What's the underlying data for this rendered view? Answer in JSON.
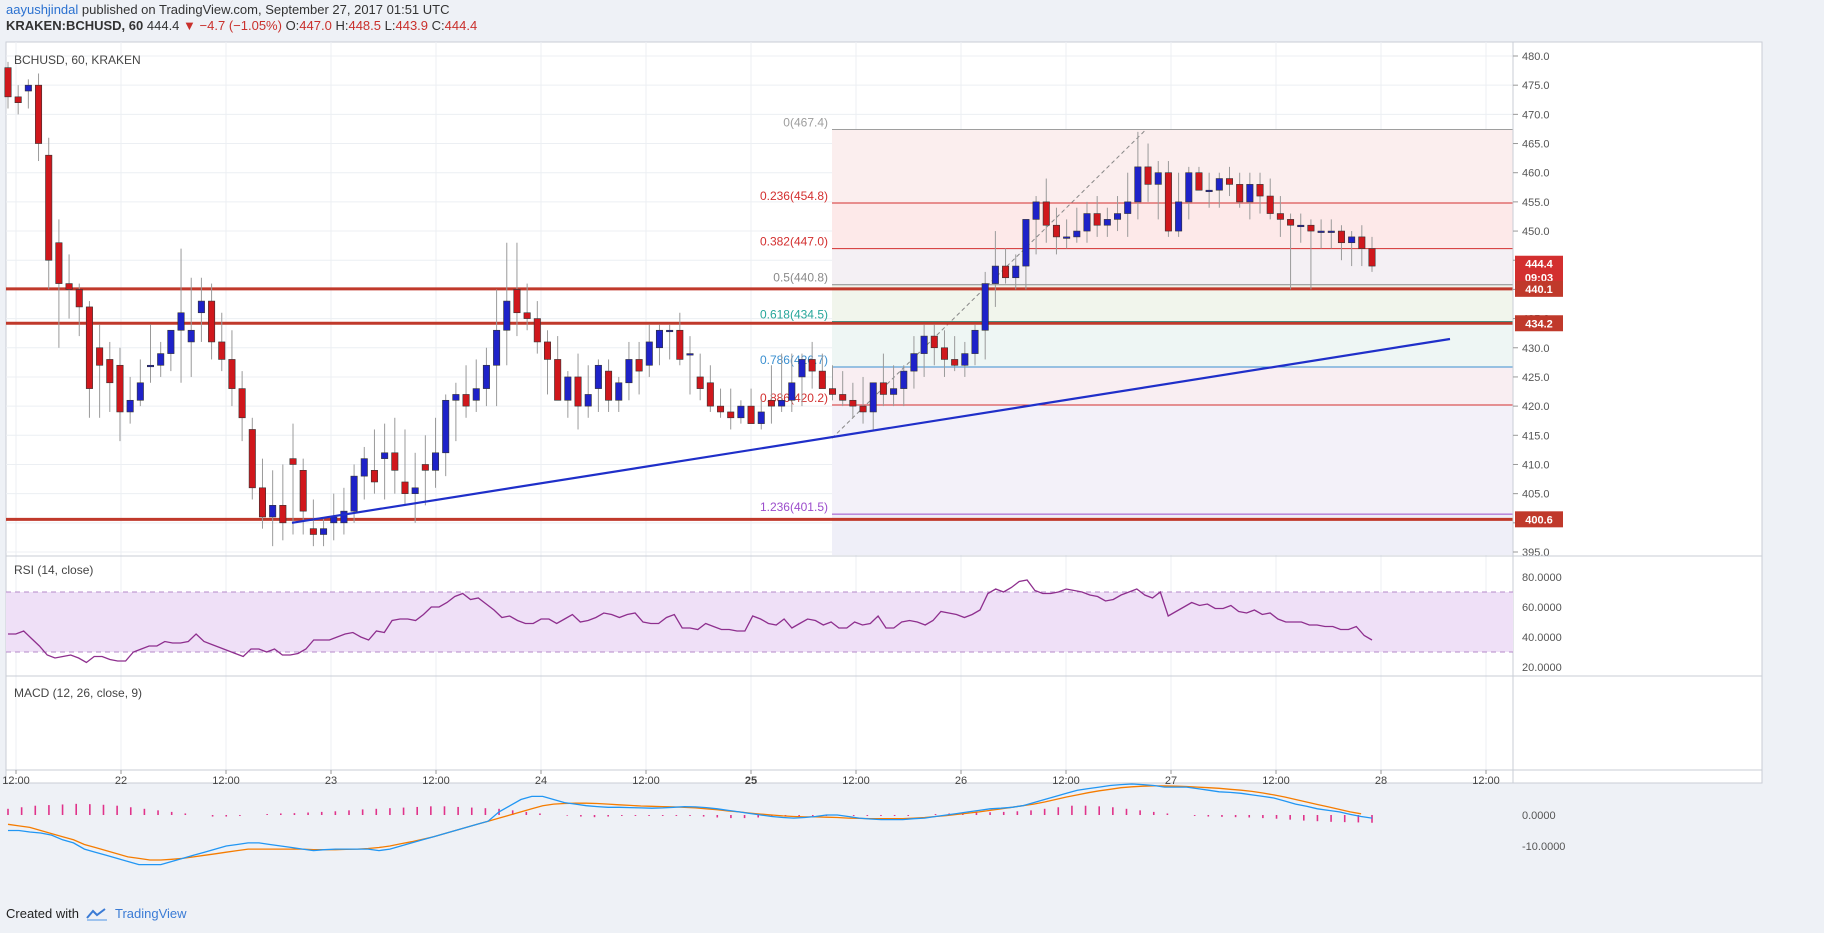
{
  "header": {
    "author": "aayushjindal",
    "published": " published on TradingView.com, September 27, 2017 01:51 UTC",
    "symbol": "KRAKEN:BCHUSD, 60",
    "last": "444.4",
    "change": "−4.7 (−1.05%)",
    "o_label": "O:",
    "o": "447.0",
    "h_label": "H:",
    "h": "448.5",
    "l_label": "L:",
    "l": "443.9",
    "c_label": "C:",
    "c": "444.4"
  },
  "pane_title": "BCHUSD, 60, KRAKEN",
  "footer": {
    "created_with": "Created with",
    "brand": "TradingView"
  },
  "chart_data": {
    "type": "candlestick",
    "symbol": "BCHUSD",
    "interval": "60",
    "exchange": "KRAKEN",
    "price_axis": {
      "min": 395,
      "max": 480,
      "ticks": [
        "480.0",
        "475.0",
        "470.0",
        "465.0",
        "460.0",
        "455.0",
        "450.0",
        "445.0",
        "440.0",
        "435.0",
        "430.0",
        "425.0",
        "420.0",
        "415.0",
        "410.0",
        "405.0",
        "400.0",
        "395.0"
      ]
    },
    "time_axis": {
      "ticks": [
        "12:00",
        "22",
        "12:00",
        "23",
        "12:00",
        "24",
        "12:00",
        "25",
        "12:00",
        "26",
        "12:00",
        "27",
        "12:00",
        "28",
        "12:00"
      ],
      "bold": [
        "25"
      ]
    },
    "ohlc_bars_in_drawn_order": [
      [
        478,
        479,
        471,
        473
      ],
      [
        473,
        475,
        470,
        472
      ],
      [
        474,
        476,
        471,
        475
      ],
      [
        475,
        477,
        462,
        465
      ],
      [
        463,
        466,
        440,
        445
      ],
      [
        448,
        452,
        430,
        441
      ],
      [
        441,
        446,
        435,
        440
      ],
      [
        440,
        441,
        432,
        437
      ],
      [
        437,
        438,
        418,
        423
      ],
      [
        430,
        434,
        418,
        427
      ],
      [
        428,
        431,
        419,
        424
      ],
      [
        427,
        430,
        414,
        419
      ],
      [
        419,
        425,
        417,
        421
      ],
      [
        421,
        428,
        420,
        424
      ],
      [
        427,
        434,
        424,
        427
      ],
      [
        427,
        431,
        425,
        429
      ],
      [
        429,
        433,
        426,
        433
      ],
      [
        433,
        447,
        424,
        436
      ],
      [
        431,
        442,
        425,
        433
      ],
      [
        436,
        442,
        431,
        438
      ],
      [
        438,
        441,
        428,
        431
      ],
      [
        431,
        436,
        426,
        428
      ],
      [
        428,
        433,
        420,
        423
      ],
      [
        423,
        426,
        414,
        418
      ],
      [
        416,
        418,
        404,
        406
      ],
      [
        406,
        411,
        399,
        401
      ],
      [
        401,
        409,
        396,
        403
      ],
      [
        403,
        410,
        397,
        400
      ],
      [
        411,
        417,
        398,
        410
      ],
      [
        409,
        411,
        398,
        402
      ],
      [
        399,
        404,
        396,
        398
      ],
      [
        398,
        401,
        396,
        399
      ],
      [
        400,
        405,
        397,
        401
      ],
      [
        400,
        406,
        398,
        402
      ],
      [
        402,
        410,
        400,
        408
      ],
      [
        408,
        413,
        404,
        411
      ],
      [
        409,
        416,
        405,
        407
      ],
      [
        411,
        417,
        404,
        412
      ],
      [
        412,
        418,
        405,
        409
      ],
      [
        407,
        416,
        403,
        405
      ],
      [
        405,
        412,
        400,
        406
      ],
      [
        410,
        415,
        403,
        409
      ],
      [
        409,
        418,
        406,
        412
      ],
      [
        412,
        422,
        408,
        421
      ],
      [
        421,
        424,
        414,
        422
      ],
      [
        422,
        427,
        418,
        420
      ],
      [
        421,
        428,
        419,
        423
      ],
      [
        423,
        430,
        420,
        427
      ],
      [
        427,
        440,
        420,
        433
      ],
      [
        433,
        448,
        427,
        438
      ],
      [
        440,
        448,
        432,
        436
      ],
      [
        436,
        441,
        433,
        435
      ],
      [
        435,
        438,
        429,
        431
      ],
      [
        431,
        433,
        422,
        428
      ],
      [
        428,
        432,
        421,
        421
      ],
      [
        421,
        426,
        418,
        425
      ],
      [
        425,
        429,
        416,
        420
      ],
      [
        420,
        427,
        418,
        422
      ],
      [
        423,
        428,
        419,
        427
      ],
      [
        426,
        428,
        419,
        421
      ],
      [
        421,
        425,
        419,
        424
      ],
      [
        424,
        431,
        421,
        428
      ],
      [
        428,
        431,
        422,
        426
      ],
      [
        427,
        434,
        425,
        431
      ],
      [
        430,
        434,
        427,
        433
      ],
      [
        433,
        434,
        428,
        433
      ],
      [
        433,
        436,
        427,
        428
      ],
      [
        429,
        432,
        422,
        429
      ],
      [
        425,
        429,
        421,
        423
      ],
      [
        424,
        427,
        419,
        420
      ],
      [
        420,
        423,
        418,
        419
      ],
      [
        419,
        423,
        416,
        418
      ],
      [
        418,
        421,
        417,
        420
      ],
      [
        420,
        423,
        418,
        417
      ],
      [
        417,
        421,
        416,
        419
      ],
      [
        421,
        427,
        417,
        420
      ],
      [
        420,
        429,
        419,
        421
      ],
      [
        421,
        429,
        419,
        424
      ],
      [
        425,
        429,
        420,
        428
      ],
      [
        428,
        431,
        423,
        426
      ],
      [
        426,
        429,
        424,
        423
      ],
      [
        423,
        427,
        421,
        422
      ],
      [
        422,
        426,
        420,
        421
      ],
      [
        421,
        424,
        418,
        420
      ],
      [
        420,
        425,
        417,
        419
      ],
      [
        419,
        423,
        416,
        424
      ],
      [
        424,
        429,
        420,
        422
      ],
      [
        422,
        427,
        420,
        423
      ],
      [
        423,
        427,
        420,
        426
      ],
      [
        426,
        432,
        423,
        429
      ],
      [
        429,
        434,
        425,
        432
      ],
      [
        432,
        434,
        427,
        430
      ],
      [
        430,
        433,
        425,
        428
      ],
      [
        428,
        432,
        426,
        427
      ],
      [
        427,
        431,
        425,
        429
      ],
      [
        429,
        434,
        427,
        433
      ],
      [
        433,
        443,
        428,
        441
      ],
      [
        441,
        450,
        437,
        444
      ],
      [
        444,
        447,
        441,
        442
      ],
      [
        442,
        446,
        440,
        444
      ],
      [
        444,
        451,
        440,
        452
      ],
      [
        452,
        456,
        446,
        455
      ],
      [
        455,
        459,
        448,
        451
      ],
      [
        451,
        454,
        446,
        449
      ],
      [
        449,
        452,
        447,
        449
      ],
      [
        449,
        454,
        448,
        450
      ],
      [
        450,
        455,
        448,
        453
      ],
      [
        453,
        456,
        449,
        451
      ],
      [
        451,
        454,
        449,
        452
      ],
      [
        452,
        456,
        450,
        453
      ],
      [
        453,
        460,
        449,
        455
      ],
      [
        455,
        467,
        452,
        461
      ],
      [
        461,
        465,
        455,
        458
      ],
      [
        458,
        462,
        452,
        460
      ],
      [
        460,
        462,
        449,
        450
      ],
      [
        450,
        460,
        449,
        455
      ],
      [
        455,
        461,
        452,
        460
      ],
      [
        460,
        461,
        457,
        457
      ],
      [
        457,
        460,
        454,
        457
      ],
      [
        457,
        460,
        454,
        459
      ],
      [
        459,
        461,
        456,
        458
      ],
      [
        458,
        460,
        454,
        455
      ],
      [
        455,
        460,
        452,
        458
      ],
      [
        458,
        460,
        453,
        456
      ],
      [
        456,
        459,
        452,
        453
      ],
      [
        453,
        456,
        449,
        452
      ],
      [
        452,
        453,
        440,
        451
      ],
      [
        451,
        453,
        448,
        451
      ],
      [
        451,
        452,
        440,
        450
      ],
      [
        450,
        452,
        447,
        450
      ],
      [
        450,
        452,
        447,
        450
      ],
      [
        450,
        451,
        445,
        448
      ],
      [
        448,
        450,
        444,
        449
      ],
      [
        449,
        451,
        444,
        447
      ],
      [
        447,
        449,
        443,
        444
      ]
    ],
    "fibonacci_levels": [
      {
        "ratio": "0",
        "price": "467.4",
        "label": "0(467.4)"
      },
      {
        "ratio": "0.236",
        "price": "454.8",
        "label": "0.236(454.8)"
      },
      {
        "ratio": "0.382",
        "price": "447.0",
        "label": "0.382(447.0)"
      },
      {
        "ratio": "0.5",
        "price": "440.8",
        "label": "0.5(440.8)"
      },
      {
        "ratio": "0.618",
        "price": "434.5",
        "label": "0.618(434.5)"
      },
      {
        "ratio": "0.786",
        "price": "426.7",
        "label": "0.786(426.7)"
      },
      {
        "ratio": "0.886",
        "price": "420.2",
        "label": "0.886(420.2)"
      },
      {
        "ratio": "1.236",
        "price": "401.5",
        "label": "1.236(401.5)"
      }
    ],
    "horizontal_lines": [
      {
        "price": 440.1,
        "label": "440.1"
      },
      {
        "price": 434.2,
        "label": "434.2"
      },
      {
        "price": 400.6,
        "label": "400.6"
      }
    ],
    "last_price_tag": "444.4",
    "countdown_tag": "09:03",
    "trend_line": {
      "from": [
        1.0,
        400.0
      ],
      "to": [
        6.0,
        431.5
      ]
    },
    "rsi": {
      "title": "RSI (14, close)",
      "axis_ticks": [
        "80.0000",
        "60.0000",
        "40.0000",
        "20.0000"
      ],
      "upper": 70,
      "lower": 30,
      "values": [
        42,
        42,
        44,
        39,
        34,
        28,
        26,
        27,
        28,
        26,
        23,
        27,
        27,
        25,
        24,
        24,
        30,
        32,
        34,
        34,
        37,
        36,
        36,
        37,
        42,
        37,
        35,
        33,
        31,
        29,
        27,
        32,
        32,
        30,
        32,
        28,
        28,
        29,
        32,
        38,
        38,
        38,
        40,
        42,
        43,
        40,
        38,
        44,
        43,
        51,
        52,
        52,
        51,
        55,
        60,
        60,
        63,
        67,
        69,
        65,
        66,
        62,
        58,
        53,
        54,
        51,
        49,
        49,
        52,
        52,
        49,
        52,
        55,
        50,
        51,
        53,
        56,
        55,
        53,
        55,
        56,
        50,
        49,
        49,
        53,
        55,
        46,
        46,
        45,
        49,
        47,
        45,
        45,
        44,
        44,
        54,
        52,
        49,
        48,
        52,
        46,
        49,
        52,
        51,
        48,
        50,
        46,
        46,
        50,
        48,
        49,
        54,
        46,
        46,
        50,
        51,
        50,
        48,
        51,
        57,
        56,
        55,
        53,
        55,
        58,
        69,
        72,
        70,
        73,
        77,
        78,
        71,
        69,
        69,
        70,
        72,
        71,
        70,
        68,
        67,
        64,
        65,
        68,
        70,
        72,
        68,
        66,
        70,
        54,
        57,
        60,
        63,
        61,
        62,
        59,
        59,
        61,
        57,
        56,
        58,
        55,
        56,
        52,
        50,
        50,
        50,
        48,
        48,
        47,
        47,
        45,
        45,
        47,
        41,
        38
      ]
    },
    "macd": {
      "title": "MACD (12, 26, close, 9)",
      "axis_ticks": [
        "0.0000",
        "-10.0000"
      ],
      "macd_line": [
        -5,
        -5,
        -5.5,
        -5.8,
        -6.5,
        -8,
        -9,
        -11,
        -12,
        -13,
        -14,
        -15,
        -16,
        -16,
        -16,
        -15,
        -14,
        -13,
        -12,
        -11,
        -10,
        -9.5,
        -9,
        -9,
        -9.5,
        -10,
        -10.5,
        -11,
        -11.5,
        -11.2,
        -11,
        -11,
        -11,
        -11,
        -11.5,
        -11,
        -10,
        -9,
        -8,
        -7,
        -6,
        -5,
        -4,
        -3,
        -2,
        1,
        3,
        5,
        6,
        6,
        5,
        4,
        3.5,
        3,
        2.7,
        2.5,
        2.5,
        2.4,
        2.3,
        2.2,
        2.3,
        2.5,
        2.7,
        2.6,
        2.4,
        2,
        1.5,
        1,
        0.5,
        0,
        -0.5,
        -0.8,
        -1,
        -0.8,
        -0.5,
        0,
        0,
        -0.5,
        -1,
        -1.3,
        -1.5,
        -1.5,
        -1.5,
        -1.2,
        -1,
        -0.5,
        0,
        0.5,
        1,
        1.5,
        2,
        2.2,
        2.5,
        3,
        4,
        5,
        6,
        7,
        8,
        8.5,
        9,
        9.5,
        9.8,
        10,
        9.8,
        9.5,
        9,
        9,
        9,
        8.5,
        8,
        7.5,
        7.3,
        7,
        6.5,
        6,
        5.5,
        4.5,
        3.5,
        2.8,
        2,
        1.5,
        1,
        0.2,
        -0.5,
        -1
      ],
      "signal_line": [
        -3,
        -3.5,
        -4,
        -5,
        -6,
        -7,
        -8,
        -9.5,
        -10.5,
        -11.5,
        -12.5,
        -13.5,
        -14,
        -14.5,
        -14.5,
        -14.3,
        -14,
        -13.5,
        -13,
        -12.5,
        -12,
        -11.5,
        -11,
        -11,
        -11,
        -11,
        -11,
        -11,
        -11.2,
        -11.2,
        -11.2,
        -11.1,
        -11,
        -10.8,
        -10.5,
        -10,
        -9.3,
        -8.6,
        -7.8,
        -7,
        -6,
        -5,
        -4,
        -3,
        -2,
        -1,
        0,
        1,
        2,
        3,
        3.5,
        3.7,
        3.8,
        3.8,
        3.7,
        3.5,
        3.3,
        3.1,
        2.9,
        2.8,
        2.7,
        2.6,
        2.5,
        2.3,
        2,
        1.7,
        1.3,
        1,
        0.6,
        0.3,
        0,
        -0.3,
        -0.5,
        -0.6,
        -0.6,
        -0.7,
        -0.8,
        -1,
        -1.1,
        -1.2,
        -1.2,
        -1.2,
        -1.2,
        -1,
        -0.8,
        -0.5,
        -0.2,
        0.2,
        0.6,
        1,
        1.5,
        2,
        2.5,
        3,
        3.5,
        4.2,
        5,
        5.8,
        6.5,
        7.2,
        7.8,
        8.3,
        8.8,
        9.1,
        9.3,
        9.4,
        9.4,
        9.3,
        9.2,
        9,
        8.8,
        8.6,
        8.3,
        8,
        7.6,
        7.1,
        6.5,
        5.8,
        5,
        4.2,
        3.4,
        2.6,
        1.8,
        1,
        0.4
      ],
      "histogram": [
        2,
        2.5,
        3,
        3.2,
        3.4,
        3.6,
        3.5,
        3.3,
        3,
        2.5,
        2,
        1.5,
        1,
        0.5,
        0,
        -0.5,
        -0.5,
        -0.3,
        0,
        0.3,
        0.5,
        0.6,
        0.8,
        1,
        1.2,
        1.5,
        1.8,
        2,
        2.2,
        2.4,
        2.6,
        2.8,
        2.8,
        2.6,
        2.4,
        2.2,
        2,
        1.5,
        1,
        0.5,
        0,
        -0.2,
        -0.5,
        -0.7,
        -0.5,
        -0.3,
        -0.3,
        -0.3,
        -0.3,
        -0.3,
        -0.3,
        -0.5,
        -0.8,
        -1,
        -1,
        -0.8,
        -0.5,
        -0.5,
        -0.5,
        -0.4,
        -0.3,
        -0.3,
        -0.3,
        -0.3,
        -0.3,
        -0.3,
        -0.3,
        0,
        0.3,
        0.5,
        0.7,
        0.8,
        0.9,
        1,
        1.2,
        1.5,
        2,
        2.5,
        3,
        3,
        2.8,
        2.5,
        2,
        1.5,
        1,
        0.5,
        0,
        -0.3,
        -0.5,
        -0.6,
        -0.7,
        -0.8,
        -1,
        -1.2,
        -1.5,
        -1.8,
        -2,
        -2.2,
        -2.3,
        -2.4,
        -2.5
      ]
    }
  }
}
